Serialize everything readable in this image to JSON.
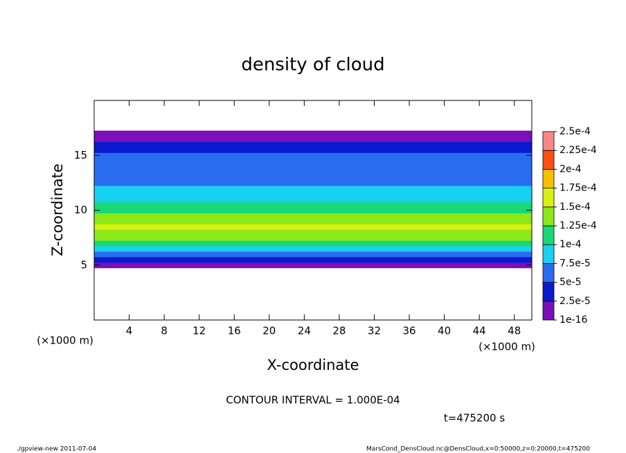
{
  "chart_data": {
    "type": "heatmap",
    "title": "density of cloud",
    "x_label": "X-coordinate",
    "y_label": "Z-coordinate",
    "x_unit": "(×1000 m)",
    "y_unit": "(×1000 m)",
    "contour_note": "CONTOUR INTERVAL = 1.000E-04",
    "time_note": "t=475200 s",
    "footer_left": "./gpview-new  2011-07-04",
    "footer_right": "MarsCond_DensCloud.nc@DensCloud,x=0:50000,z=0:20000,t=475200",
    "xlim": [
      0,
      50
    ],
    "xticks": [
      4,
      8,
      12,
      16,
      20,
      24,
      28,
      32,
      36,
      40,
      44,
      48
    ],
    "ylim": [
      0,
      20
    ],
    "yticks": [
      5,
      10,
      15
    ],
    "z": [
      5,
      5.5,
      6,
      6.5,
      7,
      7.5,
      8,
      8.5,
      9,
      9.5,
      10,
      10.5,
      11,
      11.5,
      12,
      12.5,
      13,
      13.5,
      14,
      14.5,
      15,
      15.5,
      16,
      16.5,
      17
    ],
    "values": [
      2e-05,
      4e-05,
      7e-05,
      9e-05,
      0.000115,
      0.00013,
      0.00014,
      0.00015,
      0.000145,
      0.000135,
      0.00012,
      0.000105,
      9.5e-05,
      8e-05,
      7.5e-05,
      7e-05,
      6.5e-05,
      6e-05,
      6e-05,
      5.8e-05,
      5.5e-05,
      4.5e-05,
      3e-05,
      1e-05,
      5e-06
    ],
    "levels": [
      {
        "value": 1e-16,
        "label": "1e-16"
      },
      {
        "value": 2.5e-05,
        "label": "2.5e-5"
      },
      {
        "value": 5e-05,
        "label": "5e-5"
      },
      {
        "value": 7.5e-05,
        "label": "7.5e-5"
      },
      {
        "value": 0.0001,
        "label": "1e-4"
      },
      {
        "value": 0.000125,
        "label": "1.25e-4"
      },
      {
        "value": 0.00015,
        "label": "1.5e-4"
      },
      {
        "value": 0.000175,
        "label": "1.75e-4"
      },
      {
        "value": 0.0002,
        "label": "2e-4"
      },
      {
        "value": 0.000225,
        "label": "2.25e-4"
      },
      {
        "value": 0.00025,
        "label": "2.5e-4"
      }
    ],
    "colors": [
      "#7a10b8",
      "#0a1ad0",
      "#2a6cf0",
      "#18d0f0",
      "#18d878",
      "#8ce818",
      "#d8f010",
      "#f8c000",
      "#ff5010",
      "#f88888"
    ]
  }
}
